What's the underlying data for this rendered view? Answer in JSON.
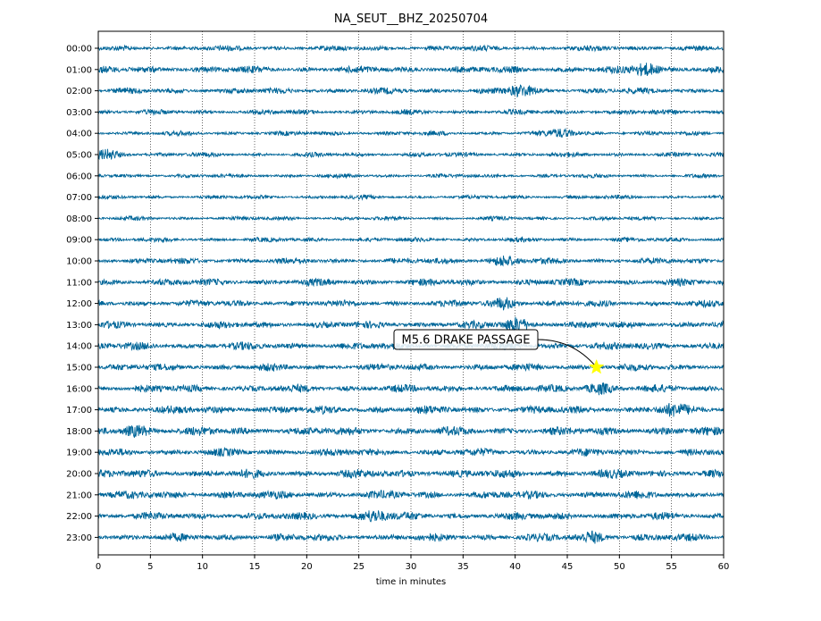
{
  "chart_data": {
    "type": "line",
    "subtype": "helicorder",
    "title": "NA_SEUT__BHZ_20250704",
    "xlabel": "time in minutes",
    "ylabel": "",
    "xlim": [
      0,
      60
    ],
    "x_ticks": [
      0,
      5,
      10,
      15,
      20,
      25,
      30,
      35,
      40,
      45,
      50,
      55,
      60
    ],
    "row_labels": [
      "00:00",
      "01:00",
      "02:00",
      "03:00",
      "04:00",
      "05:00",
      "06:00",
      "07:00",
      "08:00",
      "09:00",
      "10:00",
      "11:00",
      "12:00",
      "13:00",
      "14:00",
      "15:00",
      "16:00",
      "17:00",
      "18:00",
      "19:00",
      "20:00",
      "21:00",
      "22:00",
      "23:00"
    ],
    "grid": "vertical dotted at x ticks",
    "trace_color": "#006699",
    "row_noise_levels": [
      0.55,
      0.7,
      0.6,
      0.5,
      0.45,
      0.45,
      0.4,
      0.4,
      0.4,
      0.45,
      0.6,
      0.7,
      0.65,
      0.7,
      0.75,
      0.7,
      0.75,
      0.8,
      0.85,
      0.75,
      0.85,
      0.8,
      0.75,
      0.75
    ],
    "bursts": [
      {
        "hour": 1,
        "minute": 52.5,
        "amplitude": 1.0
      },
      {
        "hour": 2,
        "minute": 40.5,
        "amplitude": 0.8
      },
      {
        "hour": 4,
        "minute": 44.5,
        "amplitude": 0.6
      },
      {
        "hour": 5,
        "minute": 1.0,
        "amplitude": 0.7
      },
      {
        "hour": 10,
        "minute": 39.0,
        "amplitude": 0.7
      },
      {
        "hour": 12,
        "minute": 39.0,
        "amplitude": 0.8
      },
      {
        "hour": 13,
        "minute": 40.0,
        "amplitude": 1.0
      },
      {
        "hour": 16,
        "minute": 48.0,
        "amplitude": 0.8
      },
      {
        "hour": 17,
        "minute": 55.0,
        "amplitude": 0.7
      },
      {
        "hour": 18,
        "minute": 3.5,
        "amplitude": 0.8
      },
      {
        "hour": 22,
        "minute": 26.5,
        "amplitude": 0.9
      },
      {
        "hour": 23,
        "minute": 47.5,
        "amplitude": 0.7
      }
    ],
    "event": {
      "label": "M5.6 DRAKE PASSAGE",
      "hour": 15,
      "minute": 47.8,
      "marker": "star",
      "marker_color": "#ffff00"
    }
  }
}
